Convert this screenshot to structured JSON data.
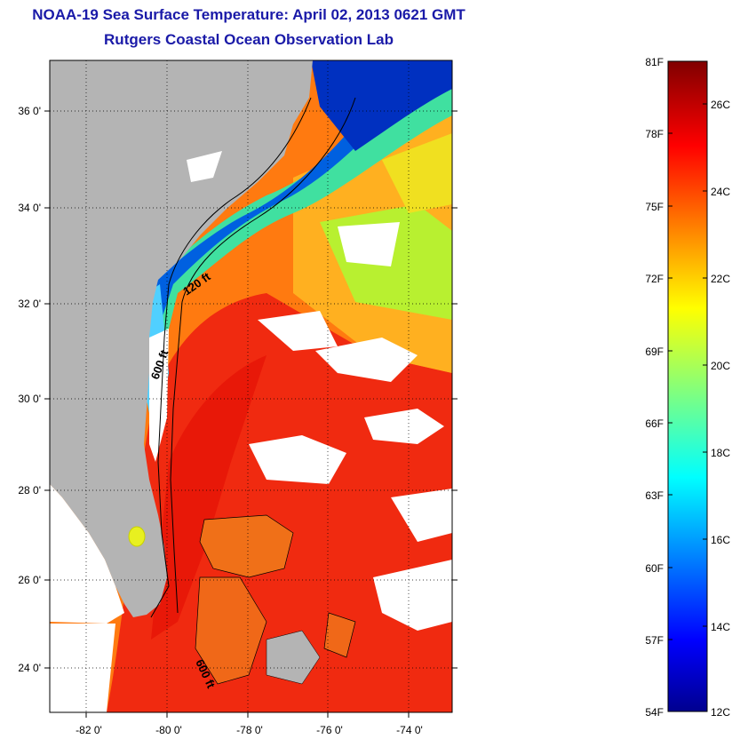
{
  "header": {
    "title": "NOAA-19 Sea Surface Temperature:  April 02, 2013 0621 GMT",
    "subtitle": "Rutgers Coastal Ocean Observation Lab"
  },
  "map": {
    "latitude_labels": [
      "36 0'",
      "34 0'",
      "32 0'",
      "30 0'",
      "28 0'",
      "26 0'",
      "24 0'"
    ],
    "longitude_labels": [
      "-82 0'",
      "-80 0'",
      "-78 0'",
      "-76 0'",
      "-74 0'"
    ],
    "contour_labels": [
      "120 ft",
      "600 ft",
      "600 ft"
    ],
    "land_color": "#b4b4b4",
    "nodata_color": "#ffffff"
  },
  "colorbar": {
    "fahrenheit_labels": [
      "81F",
      "78F",
      "75F",
      "72F",
      "69F",
      "66F",
      "63F",
      "60F",
      "57F",
      "54F"
    ],
    "celsius_labels": [
      "26C",
      "24C",
      "22C",
      "20C",
      "18C",
      "16C",
      "14C",
      "12C"
    ],
    "colormap": "jet",
    "min_f": 54,
    "max_f": 81
  }
}
